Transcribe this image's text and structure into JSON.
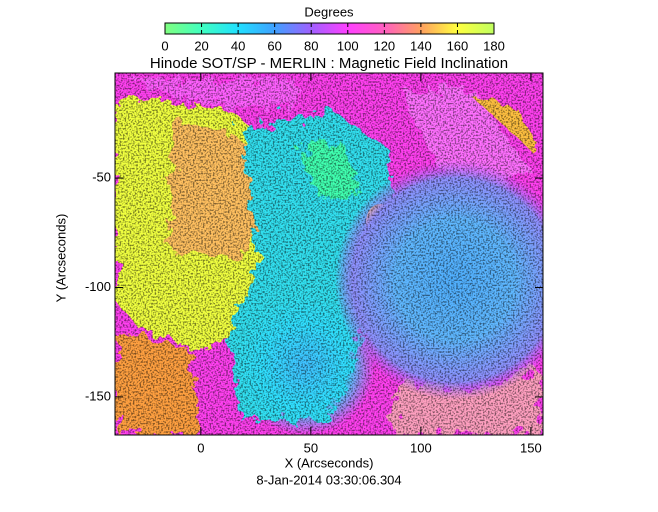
{
  "chart_data": {
    "type": "image",
    "title": "Hinode SOT/SP - MERLIN : Magnetic Field Inclination",
    "colorbar": {
      "label": "Degrees",
      "lim": [
        0,
        180
      ],
      "ticks": [
        0,
        20,
        40,
        60,
        80,
        100,
        120,
        140,
        160,
        180
      ],
      "colormap": [
        "#80ff80",
        "#40ffc0",
        "#20e0ff",
        "#40a0ff",
        "#a060ff",
        "#ff40ff",
        "#ff60c0",
        "#ffa060",
        "#ffff40",
        "#c0ff60"
      ]
    },
    "x_label": "X (Arcseconds)",
    "y_label": "Y (Arcseconds)",
    "xlim": [
      -39,
      155.5
    ],
    "xticks": [
      0,
      50,
      100,
      150
    ],
    "ylim": [
      -167.4,
      -2
    ],
    "yticks": [
      -50,
      -100,
      -150
    ],
    "footer": "8-Jan-2014 03:30:06.304"
  }
}
